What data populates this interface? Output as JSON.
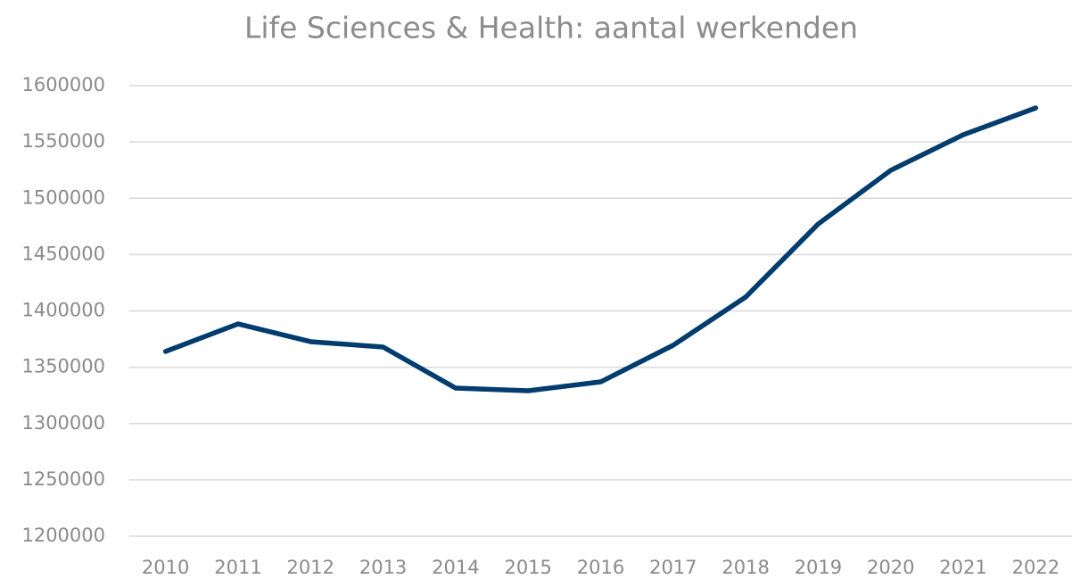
{
  "chart_data": {
    "type": "line",
    "title": "Life Sciences & Health: aantal werkenden",
    "categories": [
      "2010",
      "2011",
      "2012",
      "2013",
      "2014",
      "2015",
      "2016",
      "2017",
      "2018",
      "2019",
      "2020",
      "2021",
      "2022"
    ],
    "series": [
      {
        "color": "#003c6e",
        "values": [
          1364000,
          1388500,
          1372700,
          1367900,
          1331500,
          1329100,
          1337000,
          1369500,
          1412300,
          1477200,
          1524800,
          1556400,
          1580200
        ]
      }
    ],
    "ylim": [
      1200000,
      1600000
    ],
    "yticks": [
      1200000,
      1250000,
      1300000,
      1350000,
      1400000,
      1450000,
      1500000,
      1550000,
      1600000
    ],
    "grid": true
  }
}
